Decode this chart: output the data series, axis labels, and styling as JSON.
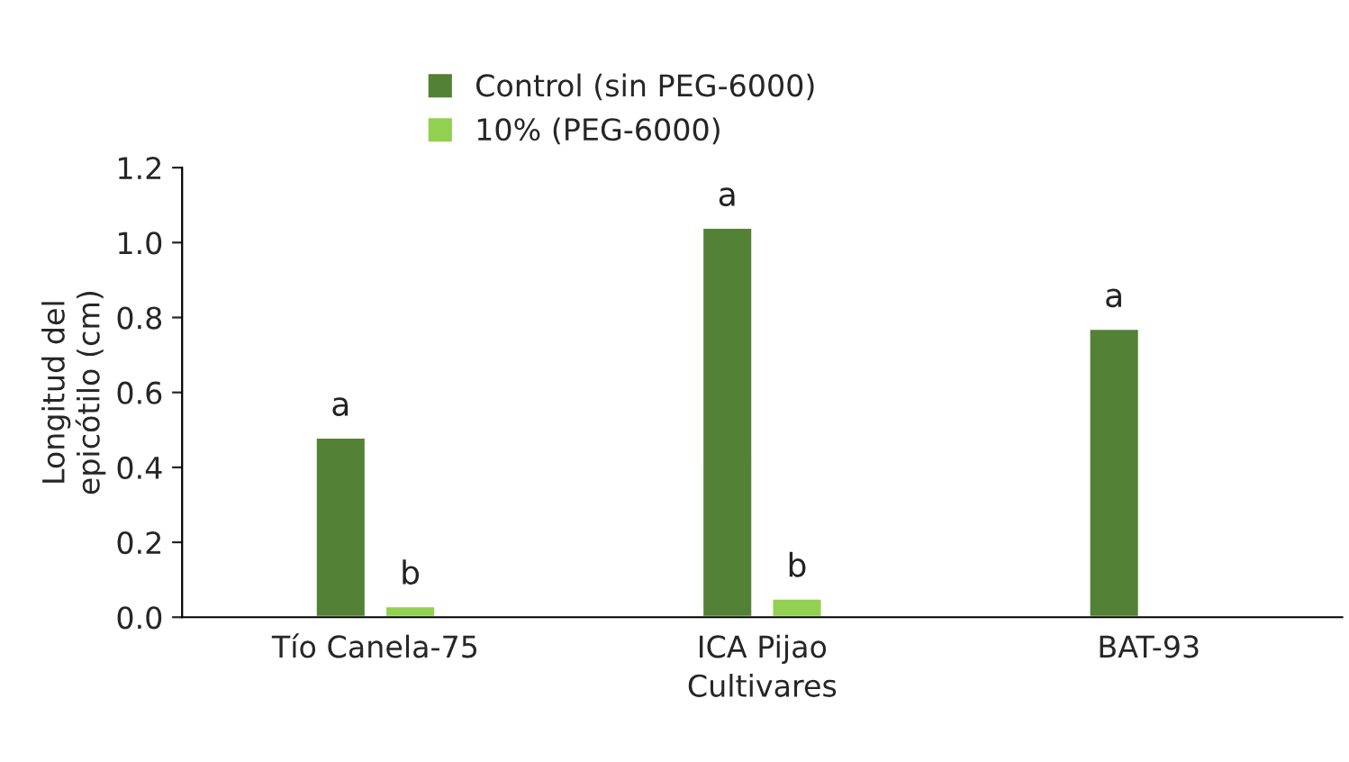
{
  "chart_data": {
    "type": "bar",
    "xlabel": "Cultivares",
    "ylabel": "Longitud del\nepicótilo (cm)",
    "categories": [
      "Tío Canela-75",
      "ICA Pijao",
      "BAT-93"
    ],
    "series": [
      {
        "name": "Control (sin PEG-6000)",
        "color": "#538135",
        "values": [
          0.48,
          1.04,
          0.77
        ],
        "value_labels": [
          "a",
          "a",
          "a"
        ]
      },
      {
        "name": "10% (PEG-6000)",
        "color": "#92d050",
        "values": [
          0.03,
          0.05,
          null
        ],
        "value_labels": [
          "b",
          "b",
          null
        ]
      }
    ],
    "ylim": [
      0,
      1.2
    ],
    "yticks": [
      {
        "value": 0,
        "label": "0.0"
      },
      {
        "value": 0.2,
        "label": "0.2"
      },
      {
        "value": 0.4,
        "label": "0.4"
      },
      {
        "value": 0.6,
        "label": "0.6"
      },
      {
        "value": 0.8,
        "label": "0.8"
      },
      {
        "value": 1.0,
        "label": "1.0"
      },
      {
        "value": 1.2,
        "label": "1.2"
      }
    ],
    "grid": false,
    "legend": "top"
  }
}
